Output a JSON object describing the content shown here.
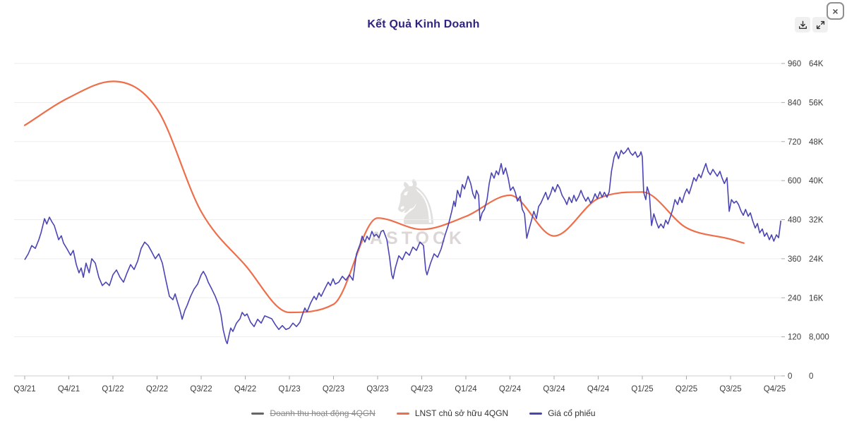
{
  "header": {
    "close_glyph": "×"
  },
  "watermark": {
    "brand": "ASTOCK",
    "logo_glyph": "♞"
  },
  "chart_data": {
    "type": "line",
    "title": "Kết Quả Kinh Doanh",
    "title_color": "#2e2383",
    "grid": true,
    "legend_position": "bottom",
    "x_categories": [
      "Q3/21",
      "Q4/21",
      "Q1/22",
      "Q2/22",
      "Q3/22",
      "Q4/22",
      "Q1/23",
      "Q2/23",
      "Q3/23",
      "Q4/23",
      "Q1/24",
      "Q2/24",
      "Q3/24",
      "Q4/24",
      "Q1/25",
      "Q2/25",
      "Q3/25",
      "Q4/25"
    ],
    "left_axis": {
      "min": 0,
      "max": 960,
      "ticks": [
        "0",
        "120",
        "240",
        "360",
        "480",
        "600",
        "720",
        "840",
        "960"
      ]
    },
    "right_axis": {
      "min": 0,
      "max": 64000,
      "ticks": [
        "0",
        "8,000",
        "16K",
        "24K",
        "32K",
        "40K",
        "48K",
        "56K",
        "64K"
      ]
    },
    "series": [
      {
        "name": "Doanh thu hoạt động 4QGN",
        "color": "#666666",
        "hidden": true,
        "values": null
      },
      {
        "name": "LNST chủ sở hữu 4QGN",
        "color": "#ee6e4a",
        "axis": "left",
        "style": "smooth",
        "points": [
          [
            0,
            770
          ],
          [
            1,
            855
          ],
          [
            2,
            905
          ],
          [
            3,
            820
          ],
          [
            4,
            505
          ],
          [
            5,
            340
          ],
          [
            6,
            195
          ],
          [
            7,
            220
          ],
          [
            8,
            485
          ],
          [
            9,
            450
          ],
          [
            10,
            490
          ],
          [
            11,
            555
          ],
          [
            12,
            430
          ],
          [
            13,
            545
          ],
          [
            14,
            565
          ],
          [
            15,
            455
          ],
          [
            16,
            420
          ],
          [
            16.3,
            408
          ]
        ]
      },
      {
        "name": "Giá cổ phiếu",
        "color": "#4b44b4",
        "axis": "right",
        "style": "jagged",
        "unit": "K",
        "points": [
          [
            0,
            23.8
          ],
          [
            0.08,
            25
          ],
          [
            0.16,
            26.7
          ],
          [
            0.24,
            26.1
          ],
          [
            0.32,
            27.9
          ],
          [
            0.37,
            29.3
          ],
          [
            0.45,
            32.2
          ],
          [
            0.5,
            31.1
          ],
          [
            0.56,
            32.5
          ],
          [
            0.62,
            31.5
          ],
          [
            0.67,
            30.8
          ],
          [
            0.77,
            27.9
          ],
          [
            0.83,
            28.7
          ],
          [
            0.88,
            27.2
          ],
          [
            0.96,
            26
          ],
          [
            1.04,
            24.7
          ],
          [
            1.1,
            25.7
          ],
          [
            1.17,
            22.8
          ],
          [
            1.23,
            21.1
          ],
          [
            1.28,
            22.1
          ],
          [
            1.33,
            20.2
          ],
          [
            1.39,
            23.1
          ],
          [
            1.46,
            21.1
          ],
          [
            1.52,
            24
          ],
          [
            1.6,
            23.1
          ],
          [
            1.68,
            20.2
          ],
          [
            1.76,
            18.5
          ],
          [
            1.84,
            19.2
          ],
          [
            1.92,
            18.5
          ],
          [
            2,
            20.7
          ],
          [
            2.08,
            21.7
          ],
          [
            2.16,
            20.2
          ],
          [
            2.24,
            19.2
          ],
          [
            2.32,
            21.1
          ],
          [
            2.4,
            22.8
          ],
          [
            2.48,
            21.8
          ],
          [
            2.56,
            23.5
          ],
          [
            2.64,
            26.1
          ],
          [
            2.72,
            27.4
          ],
          [
            2.8,
            26.7
          ],
          [
            2.88,
            25.4
          ],
          [
            2.96,
            24
          ],
          [
            3.04,
            25
          ],
          [
            3.12,
            23.1
          ],
          [
            3.2,
            19.6
          ],
          [
            3.28,
            16.3
          ],
          [
            3.36,
            15.6
          ],
          [
            3.41,
            16.8
          ],
          [
            3.47,
            14.9
          ],
          [
            3.52,
            13.4
          ],
          [
            3.57,
            11.6
          ],
          [
            3.63,
            13.4
          ],
          [
            3.68,
            14.4
          ],
          [
            3.76,
            16.3
          ],
          [
            3.84,
            17.8
          ],
          [
            3.92,
            18.8
          ],
          [
            4,
            20.7
          ],
          [
            4.05,
            21.4
          ],
          [
            4.11,
            20.4
          ],
          [
            4.16,
            19.2
          ],
          [
            4.24,
            17.8
          ],
          [
            4.32,
            16.3
          ],
          [
            4.4,
            14.4
          ],
          [
            4.45,
            12.5
          ],
          [
            4.5,
            9.4
          ],
          [
            4.56,
            7.2
          ],
          [
            4.59,
            6.6
          ],
          [
            4.64,
            8.7
          ],
          [
            4.67,
            9.8
          ],
          [
            4.72,
            9.1
          ],
          [
            4.8,
            10.8
          ],
          [
            4.88,
            11.7
          ],
          [
            4.93,
            13
          ],
          [
            4.99,
            12.3
          ],
          [
            5.04,
            12.7
          ],
          [
            5.12,
            11
          ],
          [
            5.2,
            10.1
          ],
          [
            5.28,
            11.6
          ],
          [
            5.36,
            10.8
          ],
          [
            5.44,
            12.3
          ],
          [
            5.52,
            12
          ],
          [
            5.6,
            11.7
          ],
          [
            5.68,
            10.5
          ],
          [
            5.76,
            9.5
          ],
          [
            5.84,
            10.3
          ],
          [
            5.92,
            9.5
          ],
          [
            6,
            9.8
          ],
          [
            6.08,
            10.8
          ],
          [
            6.16,
            10.1
          ],
          [
            6.24,
            11
          ],
          [
            6.29,
            12.4
          ],
          [
            6.35,
            13.9
          ],
          [
            6.4,
            13.1
          ],
          [
            6.48,
            14.9
          ],
          [
            6.56,
            16.3
          ],
          [
            6.61,
            15.6
          ],
          [
            6.67,
            17
          ],
          [
            6.72,
            16.3
          ],
          [
            6.8,
            17.8
          ],
          [
            6.88,
            19.2
          ],
          [
            6.93,
            18.5
          ],
          [
            6.99,
            19.9
          ],
          [
            7.04,
            18.8
          ],
          [
            7.12,
            19.2
          ],
          [
            7.2,
            20.4
          ],
          [
            7.28,
            19.6
          ],
          [
            7.36,
            20.7
          ],
          [
            7.44,
            19.6
          ],
          [
            7.52,
            25
          ],
          [
            7.6,
            26.9
          ],
          [
            7.65,
            28.6
          ],
          [
            7.71,
            27.4
          ],
          [
            7.76,
            28.6
          ],
          [
            7.81,
            27.9
          ],
          [
            7.87,
            29.6
          ],
          [
            7.92,
            28.6
          ],
          [
            7.97,
            29
          ],
          [
            8.03,
            28.3
          ],
          [
            8.08,
            29.6
          ],
          [
            8.13,
            29.8
          ],
          [
            8.21,
            27.9
          ],
          [
            8.27,
            24.3
          ],
          [
            8.32,
            20.7
          ],
          [
            8.35,
            19.9
          ],
          [
            8.4,
            22.1
          ],
          [
            8.48,
            24.6
          ],
          [
            8.56,
            23.8
          ],
          [
            8.64,
            25.4
          ],
          [
            8.72,
            24.7
          ],
          [
            8.8,
            26.4
          ],
          [
            8.88,
            25.7
          ],
          [
            8.96,
            27.4
          ],
          [
            9.04,
            26.7
          ],
          [
            9.09,
            21.7
          ],
          [
            9.12,
            20.7
          ],
          [
            9.2,
            23.1
          ],
          [
            9.28,
            25
          ],
          [
            9.36,
            24.3
          ],
          [
            9.44,
            26
          ],
          [
            9.52,
            28.6
          ],
          [
            9.6,
            30.8
          ],
          [
            9.68,
            33.7
          ],
          [
            9.73,
            35.8
          ],
          [
            9.76,
            34.7
          ],
          [
            9.81,
            38
          ],
          [
            9.87,
            36.6
          ],
          [
            9.92,
            39.2
          ],
          [
            9.97,
            38.3
          ],
          [
            10.05,
            40.9
          ],
          [
            10.11,
            39.4
          ],
          [
            10.16,
            37.3
          ],
          [
            10.21,
            36.3
          ],
          [
            10.24,
            38
          ],
          [
            10.29,
            37
          ],
          [
            10.32,
            31.8
          ],
          [
            10.37,
            33.4
          ],
          [
            10.42,
            34.1
          ],
          [
            10.48,
            36.1
          ],
          [
            10.53,
            39.4
          ],
          [
            10.58,
            41.6
          ],
          [
            10.64,
            40.5
          ],
          [
            10.69,
            42
          ],
          [
            10.74,
            41.2
          ],
          [
            10.8,
            43.5
          ],
          [
            10.85,
            41.3
          ],
          [
            10.9,
            42.6
          ],
          [
            10.96,
            40.5
          ],
          [
            11.01,
            38
          ],
          [
            11.07,
            38.7
          ],
          [
            11.12,
            37.6
          ],
          [
            11.17,
            35.8
          ],
          [
            11.23,
            36.8
          ],
          [
            11.28,
            34.1
          ],
          [
            11.33,
            33.2
          ],
          [
            11.38,
            28.2
          ],
          [
            11.44,
            30.3
          ],
          [
            11.49,
            31.9
          ],
          [
            11.54,
            33.7
          ],
          [
            11.6,
            32.2
          ],
          [
            11.65,
            34.7
          ],
          [
            11.7,
            35.4
          ],
          [
            11.76,
            36.6
          ],
          [
            11.81,
            37.6
          ],
          [
            11.86,
            36.1
          ],
          [
            11.92,
            37.3
          ],
          [
            11.97,
            38.7
          ],
          [
            12.02,
            37.7
          ],
          [
            12.08,
            39.2
          ],
          [
            12.13,
            38.4
          ],
          [
            12.18,
            37
          ],
          [
            12.24,
            36.1
          ],
          [
            12.29,
            35.1
          ],
          [
            12.34,
            36.6
          ],
          [
            12.4,
            35.5
          ],
          [
            12.45,
            37
          ],
          [
            12.5,
            35.8
          ],
          [
            12.56,
            36.8
          ],
          [
            12.61,
            38
          ],
          [
            12.66,
            36.8
          ],
          [
            12.72,
            35.8
          ],
          [
            12.77,
            36.6
          ],
          [
            12.83,
            35.4
          ],
          [
            12.88,
            36.1
          ],
          [
            12.93,
            37.3
          ],
          [
            12.98,
            36.3
          ],
          [
            13.04,
            37.7
          ],
          [
            13.09,
            36.6
          ],
          [
            13.14,
            37.6
          ],
          [
            13.2,
            36.6
          ],
          [
            13.25,
            37.7
          ],
          [
            13.3,
            41.9
          ],
          [
            13.36,
            44.8
          ],
          [
            13.41,
            45.9
          ],
          [
            13.46,
            44.5
          ],
          [
            13.52,
            46.2
          ],
          [
            13.57,
            45.5
          ],
          [
            13.62,
            45.9
          ],
          [
            13.68,
            46.7
          ],
          [
            13.73,
            45.7
          ],
          [
            13.78,
            45.2
          ],
          [
            13.84,
            45.9
          ],
          [
            13.89,
            44.8
          ],
          [
            13.94,
            45.2
          ],
          [
            13.97,
            45.9
          ],
          [
            14,
            44.9
          ],
          [
            14.03,
            37.6
          ],
          [
            14.08,
            36.1
          ],
          [
            14.11,
            38.7
          ],
          [
            14.16,
            37.3
          ],
          [
            14.21,
            30.8
          ],
          [
            14.26,
            33.2
          ],
          [
            14.32,
            31.5
          ],
          [
            14.37,
            30.3
          ],
          [
            14.42,
            31.1
          ],
          [
            14.48,
            30.3
          ],
          [
            14.53,
            31.9
          ],
          [
            14.58,
            31.1
          ],
          [
            14.64,
            32.7
          ],
          [
            14.69,
            34.1
          ],
          [
            14.74,
            36.1
          ],
          [
            14.8,
            35.1
          ],
          [
            14.85,
            36.6
          ],
          [
            14.9,
            35.5
          ],
          [
            14.96,
            37.3
          ],
          [
            15.01,
            38.3
          ],
          [
            15.06,
            37.3
          ],
          [
            15.12,
            39
          ],
          [
            15.17,
            40.6
          ],
          [
            15.22,
            39.9
          ],
          [
            15.28,
            41.3
          ],
          [
            15.33,
            40.6
          ],
          [
            15.38,
            42
          ],
          [
            15.44,
            43.5
          ],
          [
            15.49,
            41.9
          ],
          [
            15.54,
            41.2
          ],
          [
            15.6,
            42.3
          ],
          [
            15.65,
            41.6
          ],
          [
            15.7,
            40.9
          ],
          [
            15.76,
            41.9
          ],
          [
            15.81,
            40.5
          ],
          [
            15.86,
            39.4
          ],
          [
            15.92,
            40.6
          ],
          [
            15.97,
            33.7
          ],
          [
            16.02,
            36.1
          ],
          [
            16.08,
            35.4
          ],
          [
            16.13,
            35.8
          ],
          [
            16.18,
            35.1
          ],
          [
            16.24,
            33.7
          ],
          [
            16.29,
            32.9
          ],
          [
            16.34,
            34.1
          ],
          [
            16.4,
            32.7
          ],
          [
            16.45,
            33.4
          ],
          [
            16.5,
            31.8
          ],
          [
            16.56,
            30.3
          ],
          [
            16.61,
            31.2
          ],
          [
            16.66,
            29.3
          ],
          [
            16.72,
            30.1
          ],
          [
            16.77,
            28.6
          ],
          [
            16.82,
            29.3
          ],
          [
            16.88,
            27.9
          ],
          [
            16.93,
            28.9
          ],
          [
            16.98,
            27.6
          ],
          [
            17.04,
            28.9
          ],
          [
            17.09,
            28.3
          ],
          [
            17.14,
            31.8
          ]
        ]
      }
    ],
    "colors": {
      "grid": "#ededed",
      "axis_line": "#cccccc",
      "tick": "#aaaaaa",
      "axis_text": "#3c3c3c"
    }
  }
}
